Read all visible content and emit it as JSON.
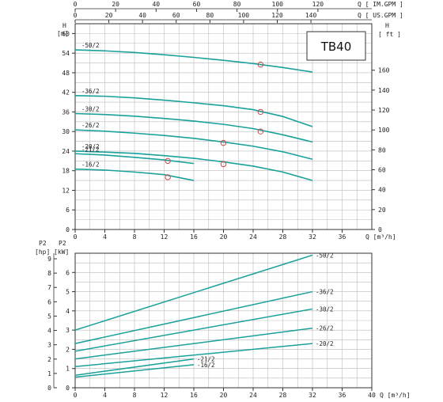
{
  "chart_data": [
    {
      "type": "line",
      "model": "TB40",
      "top_axes": [
        {
          "label": "Q [ IM.GPM ]",
          "ticks": [
            0,
            20,
            40,
            60,
            80,
            100,
            120
          ]
        },
        {
          "label": "Q [ US.GPM ]",
          "ticks": [
            0,
            20,
            40,
            60,
            80,
            100,
            120,
            140
          ]
        }
      ],
      "xlabel": "Q [m³/h]",
      "xlim": [
        0,
        40
      ],
      "xticks": [
        0,
        4,
        8,
        12,
        16,
        20,
        24,
        28,
        32,
        36
      ],
      "ylabel_left": "H [m]",
      "ylim": [
        0,
        63
      ],
      "yticks": [
        0,
        6,
        12,
        18,
        24,
        30,
        36,
        42,
        48,
        54,
        60
      ],
      "ylabel_right": "H [ft]",
      "yticks_right": [
        0,
        20,
        40,
        60,
        80,
        100,
        120,
        140,
        160
      ],
      "grid": true,
      "series": [
        {
          "name": "-50/2",
          "x": [
            0,
            4,
            8,
            12,
            16,
            20,
            24,
            28,
            32
          ],
          "values": [
            55,
            54.7,
            54.2,
            53.5,
            52.7,
            51.8,
            50.8,
            49.6,
            48.2
          ],
          "marker": {
            "x": 25,
            "y": 50.5
          }
        },
        {
          "name": "-36/2",
          "x": [
            0,
            4,
            8,
            12,
            16,
            20,
            24,
            28,
            32
          ],
          "values": [
            41,
            40.8,
            40.3,
            39.6,
            38.8,
            37.9,
            36.7,
            34.6,
            31.5
          ],
          "marker": {
            "x": 25,
            "y": 36
          }
        },
        {
          "name": "-30/2",
          "x": [
            0,
            4,
            8,
            12,
            16,
            20,
            24,
            28,
            32
          ],
          "values": [
            35.5,
            35.2,
            34.7,
            34,
            33.2,
            32.2,
            30.9,
            29,
            26.8
          ],
          "marker": {
            "x": 25,
            "y": 30
          }
        },
        {
          "name": "-26/2",
          "x": [
            0,
            4,
            8,
            12,
            16,
            20,
            24,
            28,
            32
          ],
          "values": [
            30.5,
            30.1,
            29.5,
            28.8,
            27.9,
            26.8,
            25.5,
            23.8,
            21.5
          ],
          "marker": {
            "x": 20,
            "y": 26.5
          }
        },
        {
          "name": "-20/2",
          "x": [
            0,
            4,
            8,
            12,
            16,
            20,
            24,
            28,
            32
          ],
          "values": [
            24,
            23.7,
            23.3,
            22.6,
            21.8,
            20.7,
            19.4,
            17.6,
            15
          ],
          "marker": {
            "x": 20,
            "y": 20
          }
        },
        {
          "name": "-21/2",
          "x": [
            0,
            4,
            8,
            12,
            16
          ],
          "values": [
            23.2,
            22.8,
            22.1,
            21.3,
            20.2
          ],
          "marker": {
            "x": 12.5,
            "y": 21
          }
        },
        {
          "name": "-16/2",
          "x": [
            0,
            4,
            8,
            12,
            16
          ],
          "values": [
            18.5,
            18.2,
            17.6,
            16.8,
            15
          ],
          "marker": {
            "x": 12.5,
            "y": 16
          }
        }
      ]
    },
    {
      "type": "line",
      "xlabel": "Q [m³/h]",
      "xlim": [
        0,
        40
      ],
      "xticks": [
        0,
        4,
        8,
        12,
        16,
        20,
        24,
        28,
        32,
        36,
        40
      ],
      "ylabel_left": "P2 [hp]",
      "ylabel_left_ticks": [
        0,
        1,
        2,
        3,
        4,
        5,
        6,
        7,
        8,
        9
      ],
      "ylabel_inner": "P2 [kW]",
      "ylim": [
        0,
        7
      ],
      "yticks": [
        0,
        1,
        2,
        3,
        4,
        5,
        6
      ],
      "grid": true,
      "series": [
        {
          "name": "-50/2",
          "x": [
            0,
            32
          ],
          "values": [
            3,
            6.9
          ]
        },
        {
          "name": "-36/2",
          "x": [
            0,
            32
          ],
          "values": [
            2.3,
            5
          ]
        },
        {
          "name": "-30/2",
          "x": [
            0,
            32
          ],
          "values": [
            1.9,
            4.1
          ]
        },
        {
          "name": "-26/2",
          "x": [
            0,
            32
          ],
          "values": [
            1.5,
            3.1
          ]
        },
        {
          "name": "-20/2",
          "x": [
            0,
            32
          ],
          "values": [
            1.1,
            2.3
          ]
        },
        {
          "name": "-21/2",
          "x": [
            0,
            16
          ],
          "values": [
            0.65,
            1.5
          ]
        },
        {
          "name": "-16/2",
          "x": [
            0,
            16
          ],
          "values": [
            0.55,
            1.2
          ]
        }
      ]
    }
  ]
}
